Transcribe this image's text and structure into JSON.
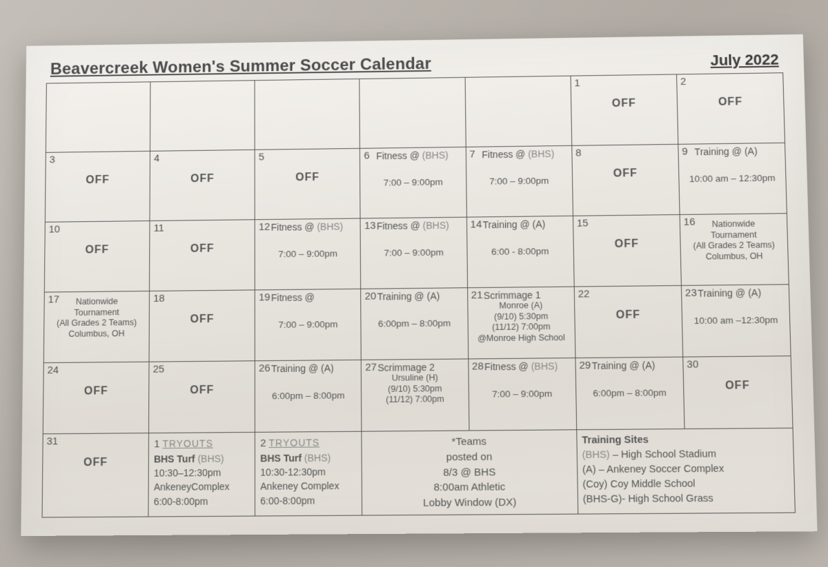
{
  "header": {
    "title": "Beavercreek Women's Summer Soccer Calendar",
    "month": "July 2022"
  },
  "weeks": [
    [
      null,
      null,
      null,
      null,
      null,
      {
        "num": "1",
        "off": true
      },
      {
        "num": "2",
        "off": true
      }
    ],
    [
      {
        "num": "3",
        "off": true
      },
      {
        "num": "4",
        "off": true
      },
      {
        "num": "5",
        "off": true
      },
      {
        "num": "6",
        "title_top": "Fitness @",
        "site": "(BHS)",
        "time": "7:00 – 9:00pm"
      },
      {
        "num": "7",
        "title_top": "Fitness @",
        "site": "(BHS)",
        "time": "7:00 – 9:00pm"
      },
      {
        "num": "8",
        "off": true
      },
      {
        "num": "9",
        "title_top": "Training @ (A)",
        "time": "10:00 am – 12:30pm"
      }
    ],
    [
      {
        "num": "10",
        "off": true
      },
      {
        "num": "11",
        "off": true
      },
      {
        "num": "12",
        "title_top": "Fitness @",
        "site": "(BHS)",
        "time": "7:00 – 9:00pm"
      },
      {
        "num": "13",
        "title_top": "Fitness @",
        "site": "(BHS)",
        "time": "7:00 – 9:00pm"
      },
      {
        "num": "14",
        "title_top": "Training @ (A)",
        "time": "6:00 - 8:00pm"
      },
      {
        "num": "15",
        "off": true
      },
      {
        "num": "16",
        "lines": [
          "Nationwide",
          "Tournament",
          "(All Grades 2 Teams)",
          "Columbus, OH"
        ]
      }
    ],
    [
      {
        "num": "17",
        "lines": [
          "Nationwide",
          "Tournament",
          "(All Grades 2 Teams)",
          "Columbus, OH"
        ]
      },
      {
        "num": "18",
        "off": true
      },
      {
        "num": "19",
        "title_top": "Fitness @",
        "time": "7:00 – 9:00pm"
      },
      {
        "num": "20",
        "title_top": "Training @ (A)",
        "time": "6:00pm – 8:00pm"
      },
      {
        "num": "21",
        "title_top": "Scrimmage 1",
        "lines": [
          "Monroe (A)",
          "(9/10)  5:30pm",
          "(11/12)  7:00pm",
          "@Monroe High School"
        ]
      },
      {
        "num": "22",
        "off": true
      },
      {
        "num": "23",
        "title_top": "Training @ (A)",
        "time": "10:00 am –12:30pm"
      }
    ],
    [
      {
        "num": "24",
        "off": true
      },
      {
        "num": "25",
        "off": true
      },
      {
        "num": "26",
        "title_top": "Training @ (A)",
        "time": "6:00pm – 8:00pm"
      },
      {
        "num": "27",
        "title_top": "Scrimmage 2",
        "lines": [
          "Ursuline (H)",
          "",
          "(9/10)  5:30pm",
          "(11/12)  7:00pm"
        ]
      },
      {
        "num": "28",
        "title_top": "Fitness @",
        "site": "(BHS)",
        "time": "7:00 – 9:00pm"
      },
      {
        "num": "29",
        "title_top": "Training @ (A)",
        "time": "6:00pm – 8:00pm"
      },
      {
        "num": "30",
        "off": true
      }
    ]
  ],
  "footer": {
    "c0": {
      "num": "31",
      "off": "OFF"
    },
    "c1": {
      "num": "1",
      "tryouts": "TRYOUTS",
      "l1": "BHS Turf",
      "l1s": "(BHS)",
      "l2": "10:30–12:30pm",
      "l3": "AnkeneyComplex",
      "l4": "6:00-8:00pm"
    },
    "c2": {
      "num": "2",
      "tryouts": "TRYOUTS",
      "l1": "BHS Turf",
      "l1s": "(BHS)",
      "l2": "10:30-12:30pm",
      "l3": "Ankeney Complex",
      "l4": "6:00-8:00pm"
    },
    "c3": {
      "l1": "*Teams",
      "l2": "posted on",
      "l3": "8/3 @ BHS",
      "l4": "8:00am Athletic",
      "l5": "Lobby Window (DX)"
    },
    "c4": {
      "head": "Training Sites",
      "l1a": "(BHS)",
      "l1b": " – High School Stadium",
      "l2": "(A) – Ankeney Soccer Complex",
      "l3": "(Coy) Coy Middle School",
      "l4": "(BHS-G)- High School Grass"
    }
  }
}
